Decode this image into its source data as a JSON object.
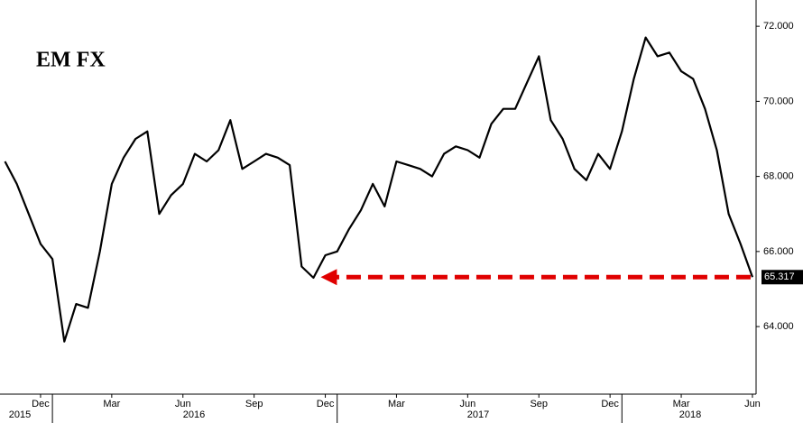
{
  "chart_data": {
    "type": "line",
    "title": "EM FX",
    "categories": [
      null,
      null,
      null,
      "Dec",
      null,
      null,
      null,
      null,
      null,
      "Mar",
      null,
      null,
      null,
      null,
      null,
      "Jun",
      null,
      null,
      null,
      null,
      null,
      "Sep",
      null,
      null,
      null,
      null,
      null,
      "Dec",
      null,
      null,
      null,
      null,
      null,
      "Mar",
      null,
      null,
      null,
      null,
      null,
      "Jun",
      null,
      null,
      null,
      null,
      null,
      "Sep",
      null,
      null,
      null,
      null,
      null,
      "Dec",
      null,
      null,
      null,
      null,
      null,
      "Mar",
      null,
      null,
      null,
      null,
      null,
      "Jun"
    ],
    "year_labels": [
      "2015",
      "2016",
      "2017",
      "2018"
    ],
    "series": [
      {
        "name": "EM FX",
        "color": "#000000",
        "values": [
          68.4,
          67.8,
          67.0,
          66.2,
          65.8,
          63.6,
          64.6,
          64.5,
          66.0,
          67.8,
          68.5,
          69.0,
          69.2,
          67.0,
          67.5,
          67.8,
          68.6,
          68.4,
          68.7,
          69.5,
          68.2,
          68.4,
          68.6,
          68.5,
          68.3,
          65.6,
          65.3,
          65.9,
          66.0,
          66.6,
          67.1,
          67.8,
          67.2,
          68.4,
          68.3,
          68.2,
          68.0,
          68.6,
          68.8,
          68.7,
          68.5,
          69.4,
          69.8,
          69.8,
          70.5,
          71.2,
          69.5,
          69.0,
          68.2,
          67.9,
          68.6,
          68.2,
          69.2,
          70.6,
          71.7,
          71.2,
          71.3,
          70.8,
          70.6,
          69.8,
          68.7,
          67.0,
          66.2,
          65.317
        ],
        "last_label": "65.317"
      }
    ],
    "ylim": [
      62.2,
      72.7
    ],
    "yticks": [
      {
        "value": 64,
        "label": "64.000"
      },
      {
        "value": 66,
        "label": "66.000"
      },
      {
        "value": 68,
        "label": "68.000"
      },
      {
        "value": 70,
        "label": "70.000"
      },
      {
        "value": 72,
        "label": "72.000"
      }
    ],
    "annotation_color": "#e00000"
  }
}
